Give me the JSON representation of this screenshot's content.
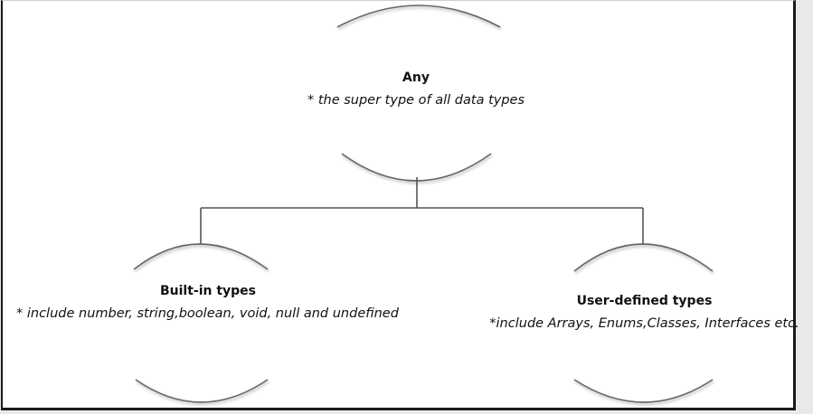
{
  "nodes": {
    "any": {
      "title": "Any",
      "desc": "* the super type of all data types"
    },
    "builtin": {
      "title": "Built-in types",
      "desc": "* include number, string,boolean, void, null and undefined"
    },
    "user": {
      "title": "User-defined types",
      "desc": "*include Arrays, Enums,Classes, Interfaces etc."
    }
  },
  "colors": {
    "line": "#555555",
    "arc": "#666666",
    "border": "#1a1a1a"
  }
}
